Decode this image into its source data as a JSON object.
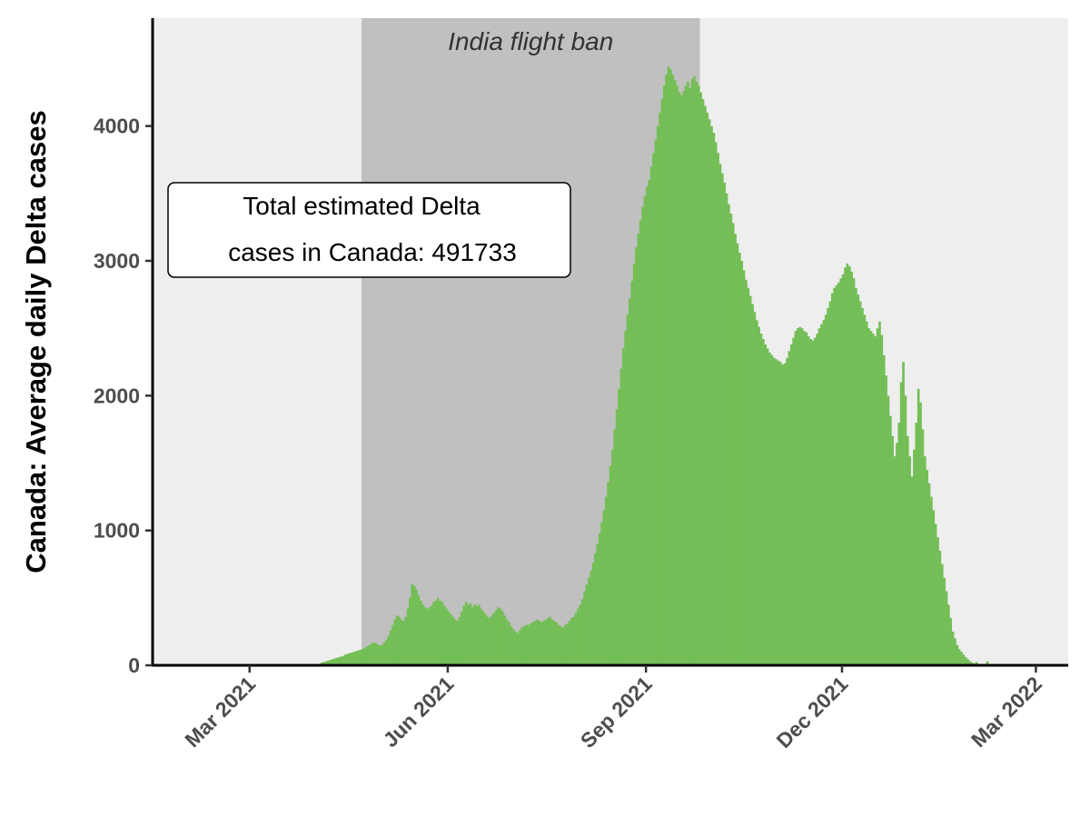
{
  "chart_data": {
    "type": "bar",
    "title": "",
    "xlabel": "",
    "ylabel": "Canada: Average daily Delta cases",
    "x_start": "2021-01-15",
    "x_end": "2022-03-16",
    "ylim": [
      0,
      4800
    ],
    "y_ticks": [
      0,
      1000,
      2000,
      3000,
      4000
    ],
    "x_ticks": [
      {
        "date": "2021-03-01",
        "label": "Mar 2021"
      },
      {
        "date": "2021-06-01",
        "label": "Jun 2021"
      },
      {
        "date": "2021-09-01",
        "label": "Sep 2021"
      },
      {
        "date": "2021-12-01",
        "label": "Dec 2021"
      },
      {
        "date": "2022-03-01",
        "label": "Mar 2022"
      }
    ],
    "shaded_region": {
      "start": "2021-04-22",
      "end": "2021-09-26",
      "label": "India flight ban",
      "color": "#c0c0c0"
    },
    "annotation": {
      "line1": "Total estimated Delta",
      "line2": "cases in Canada: 491733"
    },
    "panel_background": "#eeeeee",
    "bar_color": "#74be57",
    "grid": false,
    "series": [
      {
        "start_date": "2021-04-03",
        "values": [
          20,
          25,
          30,
          35,
          40,
          45,
          50,
          55,
          60,
          65,
          70,
          80,
          85,
          90,
          95,
          100,
          105,
          110,
          115,
          120,
          130,
          140,
          150,
          160,
          170,
          165,
          155,
          145,
          150,
          170,
          190,
          220,
          260,
          300,
          340,
          370,
          360,
          340,
          330,
          360,
          420,
          500,
          600,
          590,
          560,
          520,
          480,
          450,
          430,
          420,
          430,
          440,
          470,
          480,
          500,
          480,
          470,
          440,
          420,
          400,
          380,
          360,
          340,
          330,
          360,
          400,
          440,
          470,
          450,
          460,
          430,
          450,
          440,
          450,
          420,
          400,
          380,
          360,
          350,
          370,
          390,
          410,
          430,
          420,
          400,
          370,
          340,
          320,
          290,
          270,
          250,
          240,
          260,
          280,
          290,
          300,
          300,
          310,
          320,
          330,
          340,
          330,
          320,
          330,
          340,
          350,
          360,
          340,
          330,
          320,
          300,
          290,
          280,
          300,
          310,
          330,
          350,
          360,
          390,
          420,
          450,
          490,
          550,
          600,
          650,
          700,
          760,
          830,
          900,
          980,
          1060,
          1150,
          1250,
          1360,
          1480,
          1600,
          1750,
          1900,
          2050,
          2200,
          2350,
          2480,
          2600,
          2720,
          2850,
          2980,
          3100,
          3200,
          3300,
          3400,
          3480,
          3550,
          3600,
          3700,
          3800,
          3900,
          4000,
          4100,
          4200,
          4300,
          4380,
          4440,
          4420,
          4380,
          4340,
          4300,
          4250,
          4230,
          4260,
          4300,
          4330,
          4280,
          4350,
          4370,
          4330,
          4300,
          4250,
          4200,
          4150,
          4100,
          4050,
          4000,
          3950,
          3880,
          3800,
          3720,
          3650,
          3580,
          3500,
          3420,
          3350,
          3280,
          3200,
          3130,
          3060,
          3000,
          2930,
          2860,
          2800,
          2740,
          2680,
          2620,
          2560,
          2510,
          2460,
          2420,
          2380,
          2350,
          2320,
          2300,
          2280,
          2270,
          2260,
          2250,
          2230,
          2240,
          2280,
          2330,
          2380,
          2430,
          2480,
          2500,
          2510,
          2500,
          2480,
          2470,
          2440,
          2420,
          2410,
          2430,
          2460,
          2500,
          2530,
          2560,
          2600,
          2650,
          2700,
          2760,
          2800,
          2820,
          2840,
          2870,
          2900,
          2950,
          2980,
          2960,
          2920,
          2870,
          2800,
          2750,
          2700,
          2650,
          2600,
          2550,
          2500,
          2480,
          2460,
          2440,
          2500,
          2550,
          2450,
          2300,
          2150,
          2000,
          1850,
          1700,
          1550,
          1650,
          1800,
          2100,
          2250,
          2000,
          1700,
          1550,
          1400,
          1600,
          1800,
          2050,
          1950,
          1750,
          1550,
          1450,
          1350,
          1250,
          1150,
          1050,
          950,
          850,
          750,
          650,
          550,
          450,
          350,
          250,
          200,
          150,
          120,
          100,
          80,
          60,
          45,
          30,
          20,
          15,
          25,
          10,
          5,
          0,
          0,
          30,
          0,
          0
        ]
      }
    ]
  }
}
